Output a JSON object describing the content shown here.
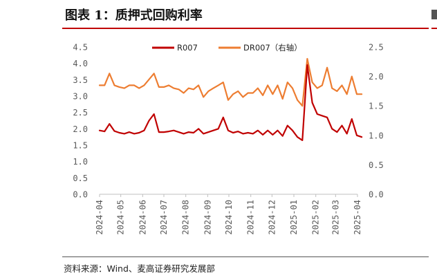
{
  "figure_title": "图表 1：质押式回购利率",
  "source": "资料来源：Wind、麦高证券研究发展部",
  "colors": {
    "r007": "#c00000",
    "dr007": "#ed7d31",
    "title_rule": "#c00000"
  },
  "chart_data": {
    "type": "line",
    "title": "",
    "legend_position": "top-center",
    "grid": false,
    "x": [
      "2024-04-01",
      "2024-04-08",
      "2024-04-15",
      "2024-04-22",
      "2024-04-29",
      "2024-05-06",
      "2024-05-13",
      "2024-05-20",
      "2024-05-27",
      "2024-06-03",
      "2024-06-10",
      "2024-06-17",
      "2024-06-24",
      "2024-07-01",
      "2024-07-08",
      "2024-07-15",
      "2024-07-22",
      "2024-07-29",
      "2024-08-05",
      "2024-08-12",
      "2024-08-19",
      "2024-08-26",
      "2024-09-02",
      "2024-09-09",
      "2024-09-16",
      "2024-09-23",
      "2024-09-30",
      "2024-10-07",
      "2024-10-14",
      "2024-10-21",
      "2024-10-28",
      "2024-11-04",
      "2024-11-11",
      "2024-11-18",
      "2024-11-25",
      "2024-12-02",
      "2024-12-09",
      "2024-12-16",
      "2024-12-23",
      "2024-12-30",
      "2025-01-06",
      "2025-01-13",
      "2025-01-20",
      "2025-01-27",
      "2025-02-03",
      "2025-02-10",
      "2025-02-17",
      "2025-02-24",
      "2025-03-03",
      "2025-03-10",
      "2025-03-17",
      "2025-03-24",
      "2025-03-31",
      "2025-04-07"
    ],
    "x_ticks": [
      "2024-04",
      "2024-05",
      "2024-06",
      "2024-07",
      "2024-08",
      "2024-09",
      "2024-10",
      "2024-11",
      "2024-12",
      "2025-01",
      "2025-02",
      "2025-03",
      "2025-04"
    ],
    "y_left": {
      "min": 0,
      "max": 4.5,
      "ticks": [
        "0.0",
        "0.5",
        "1.0",
        "1.5",
        "2.0",
        "2.5",
        "3.0",
        "3.5",
        "4.0",
        "4.5"
      ]
    },
    "y_right": {
      "min": 0,
      "max": 2.5,
      "ticks": [
        "0.0",
        "0.5",
        "1.0",
        "1.5",
        "2.0",
        "2.5"
      ]
    },
    "series": [
      {
        "name": "R007",
        "axis": "left",
        "values": [
          1.95,
          1.92,
          2.15,
          1.93,
          1.88,
          1.85,
          1.9,
          1.85,
          1.88,
          1.95,
          2.25,
          2.45,
          1.9,
          1.9,
          1.92,
          1.95,
          1.9,
          1.85,
          1.9,
          1.88,
          2.0,
          1.85,
          1.9,
          1.95,
          2.0,
          2.35,
          1.95,
          1.88,
          1.92,
          1.85,
          1.88,
          1.85,
          1.95,
          1.82,
          1.95,
          1.82,
          1.95,
          1.78,
          2.1,
          1.95,
          1.75,
          1.65,
          3.95,
          2.8,
          2.45,
          2.4,
          2.35,
          2.0,
          1.9,
          2.1,
          1.85,
          2.3,
          1.8,
          1.75
        ]
      },
      {
        "name": "DR007（右轴）",
        "axis": "right",
        "values": [
          1.85,
          1.85,
          2.05,
          1.85,
          1.82,
          1.8,
          1.85,
          1.85,
          1.8,
          1.85,
          1.95,
          2.05,
          1.82,
          1.82,
          1.85,
          1.8,
          1.78,
          1.72,
          1.8,
          1.78,
          1.85,
          1.65,
          1.75,
          1.8,
          1.85,
          1.9,
          1.6,
          1.7,
          1.75,
          1.65,
          1.72,
          1.72,
          1.8,
          1.68,
          1.85,
          1.7,
          1.85,
          1.62,
          1.9,
          1.8,
          1.6,
          1.5,
          2.3,
          1.9,
          1.8,
          1.85,
          2.15,
          1.8,
          1.75,
          1.85,
          1.7,
          2.0,
          1.7,
          1.7
        ]
      }
    ]
  }
}
